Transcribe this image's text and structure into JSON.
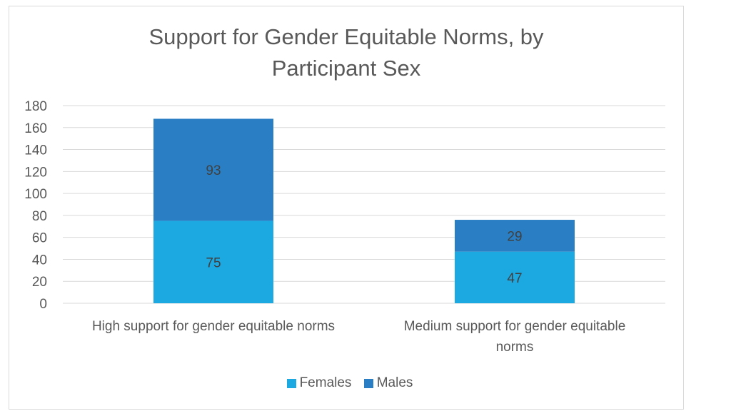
{
  "colors": {
    "females": "#1ca8e0",
    "males": "#2a7fc4",
    "grid": "#d9d9d9",
    "text": "#595959"
  },
  "chart_data": {
    "type": "bar",
    "stacked": true,
    "title_lines": [
      "Support for Gender Equitable Norms, by",
      "Participant Sex"
    ],
    "categories": [
      [
        "High support for gender equitable norms"
      ],
      [
        "Medium support for gender equitable",
        "norms"
      ]
    ],
    "series": [
      {
        "name": "Females",
        "values": [
          75,
          47
        ]
      },
      {
        "name": "Males",
        "values": [
          93,
          29
        ]
      }
    ],
    "yticks": [
      "0",
      "20",
      "40",
      "60",
      "80",
      "100",
      "120",
      "140",
      "160",
      "180"
    ],
    "ylim": [
      0,
      180
    ],
    "grid": true,
    "legend": "bottom",
    "data_labels": true
  }
}
